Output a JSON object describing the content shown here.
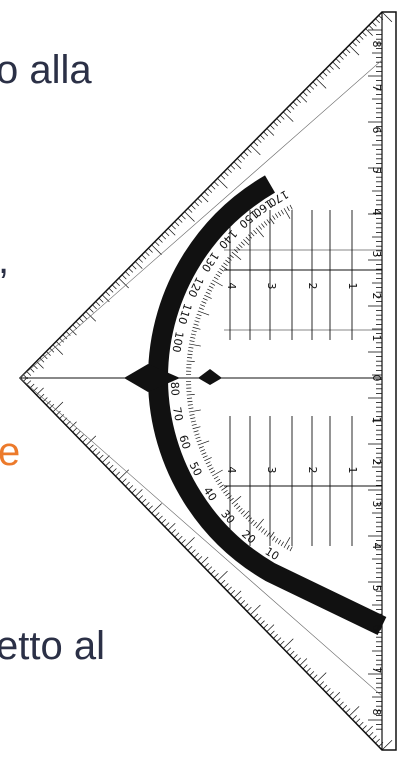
{
  "text_fragments": {
    "line1": "o alla",
    "line2": ",",
    "line3": "e",
    "line4": "etto al"
  },
  "text_colors": {
    "body": "#2b3046",
    "highlight": "#ec7a2b"
  },
  "protractor": {
    "protractor_numbers": [
      "10",
      "20",
      "30",
      "40",
      "50",
      "60",
      "70",
      "80",
      "100",
      "110",
      "120",
      "130",
      "140",
      "150",
      "160",
      "170"
    ],
    "edge_scale_numbers": [
      "8",
      "7",
      "6",
      "5",
      "4",
      "3",
      "2",
      "1",
      "0",
      "1",
      "2",
      "3",
      "4",
      "5",
      "6",
      "7",
      "8"
    ],
    "inner_scale_numbers": [
      "4",
      "3",
      "2",
      "1",
      "1",
      "2",
      "3",
      "4"
    ]
  }
}
